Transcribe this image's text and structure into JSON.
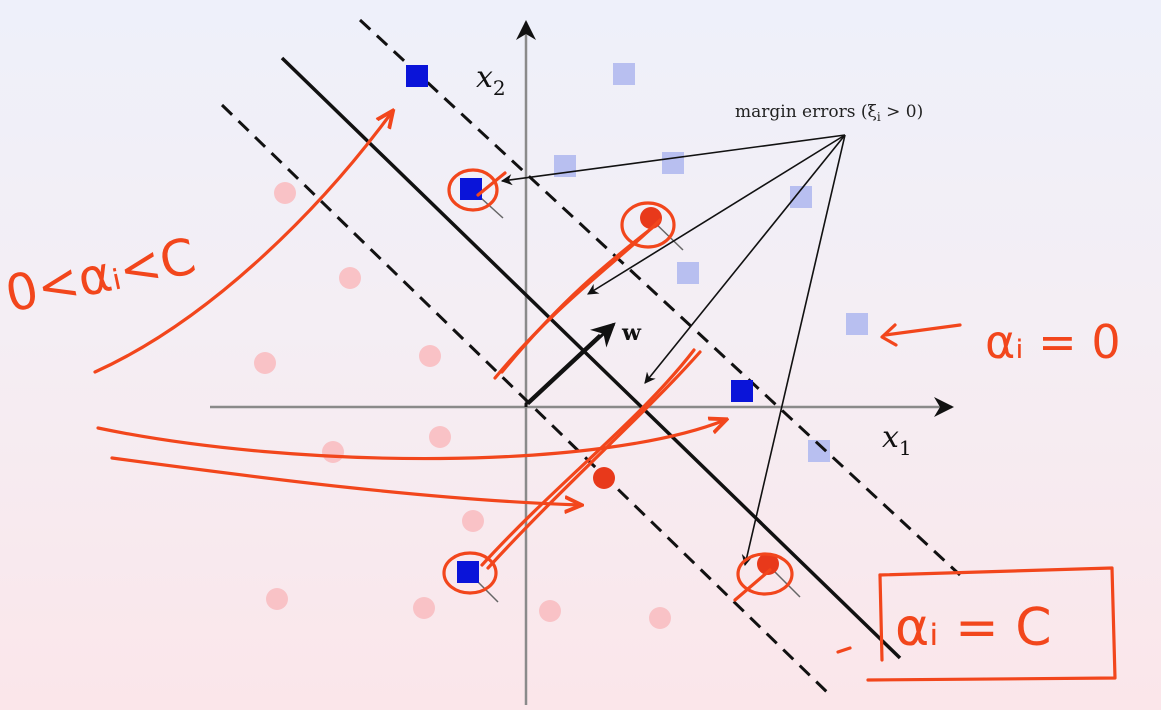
{
  "diagram": {
    "axes": {
      "x_label": "x",
      "x_sub": "1",
      "y_label": "x",
      "y_sub": "2"
    },
    "normal_vector_label": "w",
    "annotation_text": "margin errors (ξ",
    "annotation_sub": "i",
    "annotation_tail": " > 0)",
    "handwritten": {
      "left": "0<αᵢ<C",
      "right_top": "αᵢ = 0",
      "right_bottom": "αᵢ = C"
    },
    "colors": {
      "class_pos": "#0a14d9",
      "class_pos_faded": "#b8bff0",
      "class_neg": "#e8391b",
      "class_neg_faded": "#f9c2c6",
      "ink": "#f2461c"
    }
  }
}
